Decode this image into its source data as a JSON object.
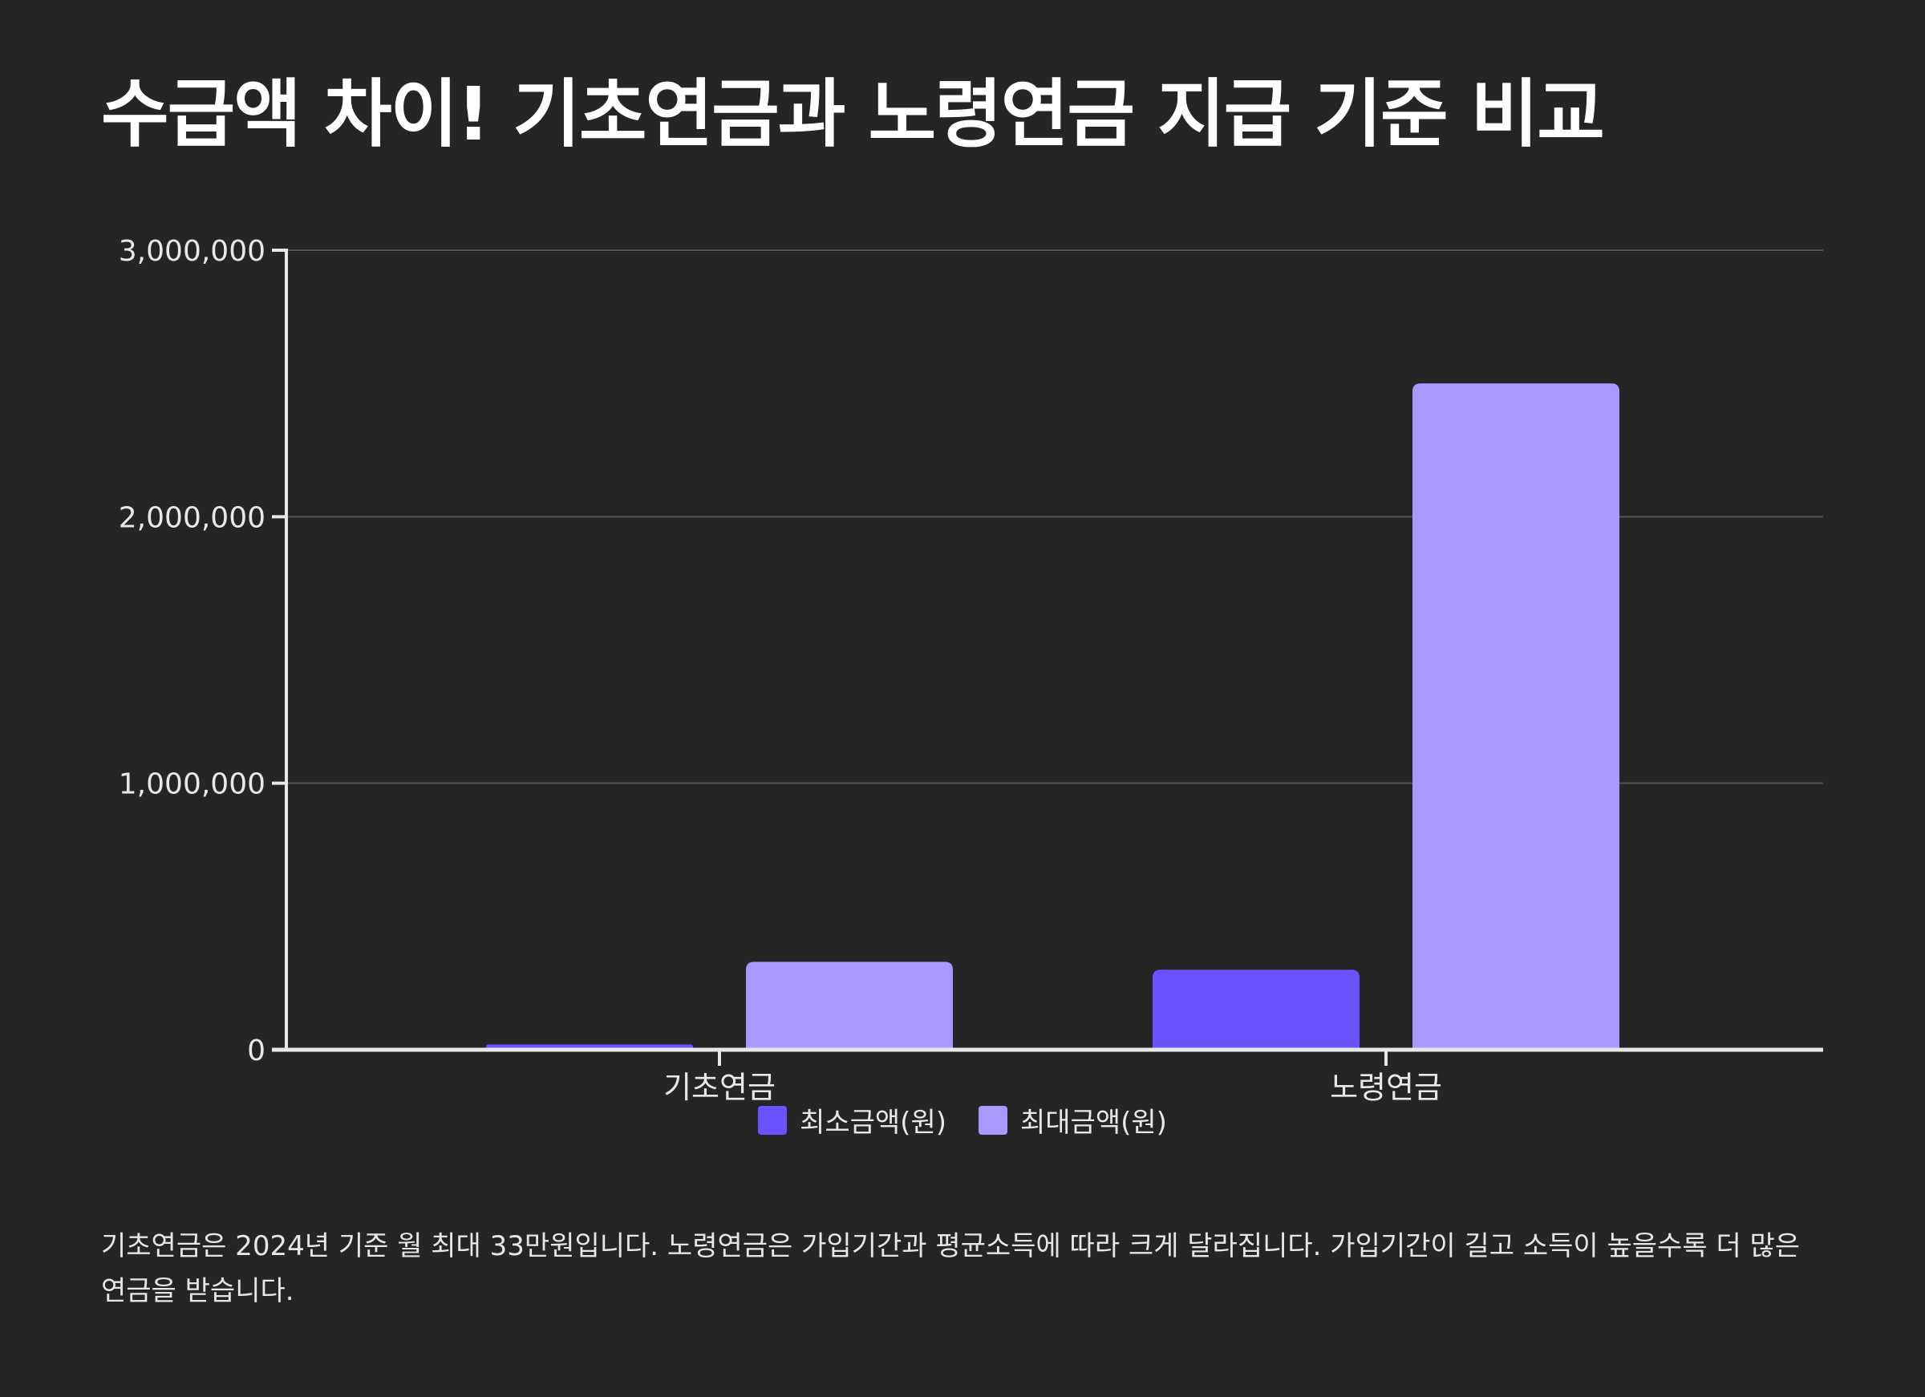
{
  "title": "수급액 차이! 기초연금과 노령연금 지급 기준 비교",
  "chart_data": {
    "type": "bar",
    "categories": [
      "기초연금",
      "노령연금"
    ],
    "series": [
      {
        "name": "최소금액(원)",
        "values": [
          20000,
          300000
        ],
        "color": "#6a53ff"
      },
      {
        "name": "최대금액(원)",
        "values": [
          330000,
          2500000
        ],
        "color": "#a899ff"
      }
    ],
    "ylim": [
      0,
      3000000
    ],
    "yticks": [
      0,
      1000000,
      2000000,
      3000000
    ],
    "ytick_labels": [
      "0",
      "1,000,000",
      "2,000,000",
      "3,000,000"
    ],
    "grid": true,
    "legend_position": "bottom"
  },
  "note": "기초연금은 2024년 기준 월 최대 33만원입니다. 노령연금은 가입기간과 평균소득에 따라 크게 달라집니다. 가입기간이 길고 소득이 높을수록 더 많은 연금을 받습니다."
}
